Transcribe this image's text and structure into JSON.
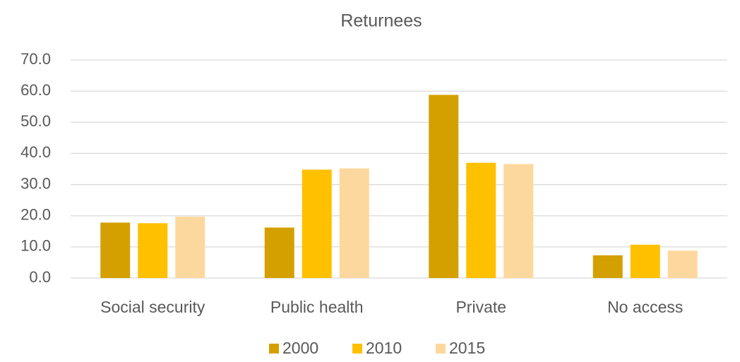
{
  "chart_data": {
    "type": "bar",
    "title": "Returnees",
    "categories": [
      "Social security",
      "Public health",
      "Private",
      "No access"
    ],
    "series": [
      {
        "name": "2000",
        "color": "#d4a000",
        "values": [
          17.8,
          16.2,
          58.8,
          7.3
        ]
      },
      {
        "name": "2010",
        "color": "#ffc000",
        "values": [
          17.6,
          34.8,
          37.0,
          10.7
        ]
      },
      {
        "name": "2015",
        "color": "#fdd89e",
        "values": [
          19.7,
          35.2,
          36.6,
          8.8
        ]
      }
    ],
    "ylim": [
      0,
      70
    ],
    "yticks": [
      {
        "value": 0,
        "label": "0.0"
      },
      {
        "value": 10,
        "label": "10.0"
      },
      {
        "value": 20,
        "label": "20.0"
      },
      {
        "value": 30,
        "label": "30.0"
      },
      {
        "value": 40,
        "label": "40.0"
      },
      {
        "value": 50,
        "label": "50.0"
      },
      {
        "value": 60,
        "label": "60.0"
      },
      {
        "value": 70,
        "label": "70.0"
      }
    ],
    "grid": true,
    "legend": "bottom"
  }
}
